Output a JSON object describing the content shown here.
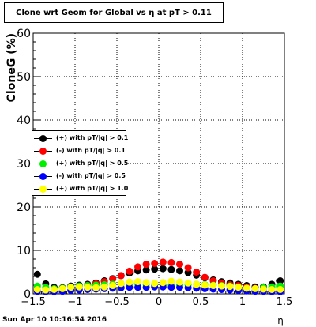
{
  "title": "Clone wrt Geom for Global vs   η at pT > 0.11",
  "date_stamp": "Sun Apr 10 10:16:54 2016",
  "chart_data": {
    "type": "scatter",
    "xlabel": "η",
    "ylabel": "CloneG (%)",
    "xlim": [
      -1.5,
      1.5
    ],
    "ylim": [
      0,
      60
    ],
    "x_ticks": [
      "−1.5",
      "−1",
      "−0.5",
      "0",
      "0.5",
      "1",
      "1.5"
    ],
    "y_ticks": [
      "0",
      "10",
      "20",
      "30",
      "40",
      "50",
      "60"
    ],
    "grid": true,
    "legend_position": "center-left",
    "x": [
      -1.45,
      -1.35,
      -1.25,
      -1.15,
      -1.05,
      -0.95,
      -0.85,
      -0.75,
      -0.65,
      -0.55,
      -0.45,
      -0.35,
      -0.25,
      -0.15,
      -0.05,
      0.05,
      0.15,
      0.25,
      0.35,
      0.45,
      0.55,
      0.65,
      0.75,
      0.85,
      0.95,
      1.05,
      1.15,
      1.25,
      1.35,
      1.45
    ],
    "series": [
      {
        "name": "(+) with pT/|q| > 0.1",
        "color": "#000000",
        "values": [
          4.5,
          2.3,
          1.5,
          1.4,
          1.8,
          2.0,
          2.2,
          2.5,
          3.0,
          3.5,
          4.2,
          4.8,
          5.3,
          5.5,
          5.7,
          5.8,
          5.6,
          5.3,
          4.9,
          4.3,
          3.7,
          3.2,
          2.8,
          2.5,
          2.2,
          1.9,
          1.6,
          1.6,
          2.2,
          3.0
        ]
      },
      {
        "name": "(-) with pT/|q| > 0.1",
        "color": "#ff0000",
        "values": [
          0.8,
          1.0,
          1.2,
          1.3,
          1.5,
          1.7,
          2.0,
          2.3,
          2.8,
          3.4,
          4.2,
          5.2,
          6.2,
          6.8,
          7.0,
          7.3,
          7.2,
          6.8,
          6.0,
          5.0,
          3.8,
          3.0,
          2.5,
          2.1,
          1.9,
          1.6,
          1.3,
          1.1,
          0.9,
          0.7
        ]
      },
      {
        "name": "(+) with pT/|q| > 0.5",
        "color": "#00ee00",
        "values": [
          1.8,
          1.5,
          1.2,
          1.3,
          1.6,
          1.8,
          1.9,
          2.0,
          2.1,
          2.2,
          2.3,
          2.4,
          2.3,
          2.2,
          2.1,
          2.0,
          2.0,
          2.1,
          2.1,
          2.2,
          2.1,
          2.0,
          1.9,
          1.8,
          1.6,
          1.3,
          1.2,
          1.4,
          1.6,
          1.8
        ]
      },
      {
        "name": "(-) with pT/|q| > 0.5",
        "color": "#0000ff",
        "values": [
          0.6,
          0.5,
          0.5,
          0.6,
          0.8,
          0.9,
          1.0,
          1.1,
          1.2,
          1.3,
          1.4,
          1.5,
          1.5,
          1.5,
          1.6,
          1.6,
          1.5,
          1.5,
          1.4,
          1.3,
          1.2,
          1.1,
          1.0,
          0.9,
          0.8,
          0.7,
          0.6,
          0.6,
          0.5,
          0.5
        ]
      },
      {
        "name": "(+) with pT/|q| > 1.0",
        "color": "#ffff00",
        "values": [
          1.0,
          0.9,
          1.0,
          1.2,
          1.5,
          1.6,
          1.5,
          1.4,
          1.6,
          1.9,
          2.4,
          2.7,
          2.8,
          2.6,
          2.4,
          2.6,
          2.9,
          2.7,
          2.5,
          2.2,
          2.0,
          1.9,
          1.8,
          1.7,
          1.5,
          1.3,
          1.2,
          1.1,
          1.0,
          1.0
        ]
      }
    ]
  }
}
